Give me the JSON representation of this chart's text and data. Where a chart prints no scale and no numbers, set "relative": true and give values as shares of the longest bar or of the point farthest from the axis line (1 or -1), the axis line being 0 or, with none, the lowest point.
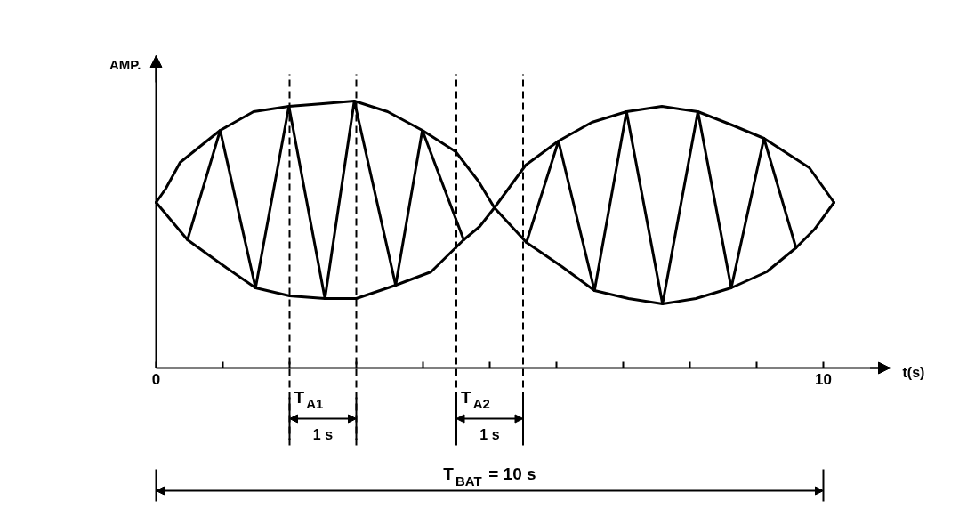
{
  "chart_data": {
    "type": "line",
    "relative": true,
    "xlabel": "t(s)",
    "ylabel": "AMP.",
    "xlim": [
      0,
      11
    ],
    "xticks": [
      0,
      {
        "value": 1,
        "label": null
      },
      {
        "value": 2,
        "label": null
      },
      {
        "value": 3,
        "label": null
      },
      {
        "value": 4,
        "label": null
      },
      {
        "value": 5,
        "label": null
      },
      {
        "value": 6,
        "label": null
      },
      {
        "value": 7,
        "label": null
      },
      {
        "value": 8,
        "label": null
      },
      {
        "value": 9,
        "label": null
      },
      10
    ],
    "tick_labels": "x",
    "series": [
      {
        "color": "#000000",
        "x": [
          0,
          0.14,
          0.36,
          0.66,
          0.96,
          1.46,
          1.99,
          2.5,
          2.97,
          3.47,
          3.99,
          4.49,
          4.83,
          5.07,
          5.55,
          6.08,
          6.57,
          7.08,
          7.59,
          8.09,
          8.62,
          9.15,
          9.59,
          9.87,
          10.16
        ],
        "values": [
          0.62,
          0.67,
          0.77,
          0.83,
          0.89,
          0.96,
          0.98,
          0.99,
          1.0,
          0.96,
          0.89,
          0.81,
          0.7,
          0.6,
          0.47,
          0.38,
          0.29,
          0.26,
          0.24,
          0.26,
          0.3,
          0.36,
          0.45,
          0.52,
          0.62
        ]
      },
      {
        "color": "#000000",
        "x": [
          0.47,
          0.97,
          1.49,
          2.0,
          2.53,
          3.0,
          3.59,
          4.12,
          4.61,
          4.85,
          5.07,
          5.54,
          6.03,
          6.53,
          7.05,
          7.58,
          8.12,
          8.63,
          9.11,
          9.79,
          10.16
        ],
        "values": [
          0.48,
          0.39,
          0.3,
          0.27,
          0.26,
          0.26,
          0.31,
          0.36,
          0.48,
          0.53,
          0.6,
          0.76,
          0.85,
          0.92,
          0.96,
          0.98,
          0.96,
          0.91,
          0.86,
          0.75,
          0.62
        ]
      },
      {
        "color": "#000000",
        "x": [
          0,
          0.47,
          0.96,
          1.49,
          1.99,
          2.53,
          2.97,
          3.59,
          3.99,
          4.61,
          5.07,
          5.55,
          6.03,
          6.57,
          7.05,
          7.59,
          8.12,
          8.62,
          9.11,
          9.59
        ],
        "values": [
          0.62,
          0.48,
          0.89,
          0.3,
          0.98,
          0.26,
          1.0,
          0.31,
          0.89,
          0.48,
          null,
          0.47,
          0.85,
          0.29,
          0.96,
          0.24,
          0.96,
          0.3,
          0.86,
          0.45
        ]
      }
    ],
    "ref_lines": [
      {
        "axis": "x",
        "value": 2,
        "line_style": "dashed"
      },
      {
        "axis": "x",
        "value": 3,
        "line_style": "dashed"
      },
      {
        "axis": "x",
        "value": 4.5,
        "line_style": "dashed"
      },
      {
        "axis": "x",
        "value": 5.5,
        "line_style": "dashed"
      }
    ],
    "annotations": [
      {
        "text": "T$_{A1}$",
        "x": 2,
        "y": -0.11
      },
      "1 s",
      {
        "text": "T$_{A2}$",
        "x": 4.5,
        "y": -0.11
      },
      "1 s",
      "T$_{BAT}$ = 10 s"
    ]
  }
}
